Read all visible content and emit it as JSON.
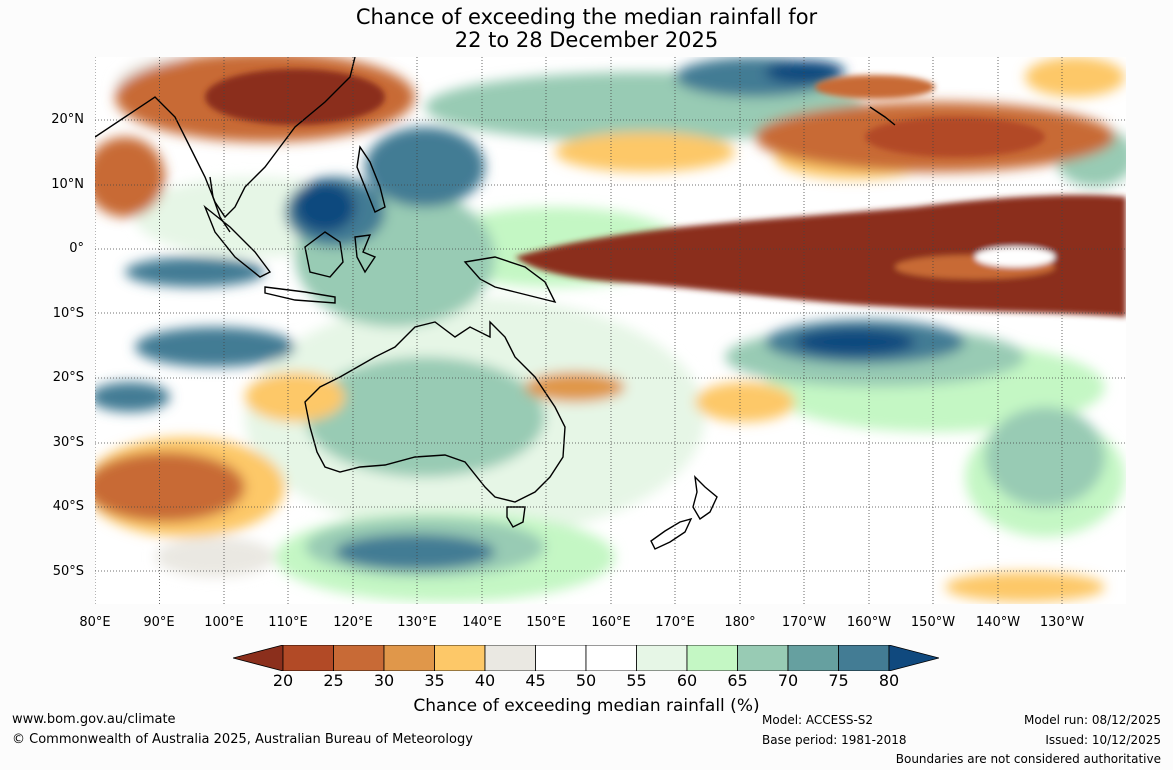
{
  "title": {
    "line1": "Chance of exceeding the median rainfall for",
    "line2": "22 to 28 December 2025"
  },
  "axes": {
    "lat_labels": [
      "20°N",
      "10°N",
      "0°",
      "10°S",
      "20°S",
      "30°S",
      "40°S",
      "50°S"
    ],
    "lon_labels": [
      "80°E",
      "90°E",
      "100°E",
      "110°E",
      "120°E",
      "130°E",
      "140°E",
      "150°E",
      "160°E",
      "170°E",
      "180°",
      "170°W",
      "160°W",
      "150°W",
      "140°W",
      "130°W"
    ],
    "lat_range": [
      -55,
      30
    ],
    "lon_range": [
      80,
      240
    ],
    "grid": true
  },
  "legend": {
    "title": "Chance of exceeding median rainfall (%)",
    "ticks": [
      "20",
      "25",
      "30",
      "35",
      "40",
      "45",
      "50",
      "55",
      "60",
      "65",
      "70",
      "75",
      "80"
    ],
    "colors": [
      "#8b2f1c",
      "#b24a26",
      "#c86a36",
      "#e0974a",
      "#fdc868",
      "#eae8e2",
      "#ffffff",
      "#ffffff",
      "#e6f6e6",
      "#c4f7c4",
      "#98cbb4",
      "#66a0a0",
      "#437c94",
      "#10497e"
    ]
  },
  "footer": {
    "website": "www.bom.gov.au/climate",
    "copyright": "© Commonwealth of Australia 2025, Australian Bureau of Meteorology",
    "model": "Model: ACCESS-S2",
    "base_period": "Base period: 1981-2018",
    "model_run": "Model run: 08/12/2025",
    "issued": "Issued: 10/12/2025",
    "boundaries": "Boundaries are not considered authoritative"
  }
}
